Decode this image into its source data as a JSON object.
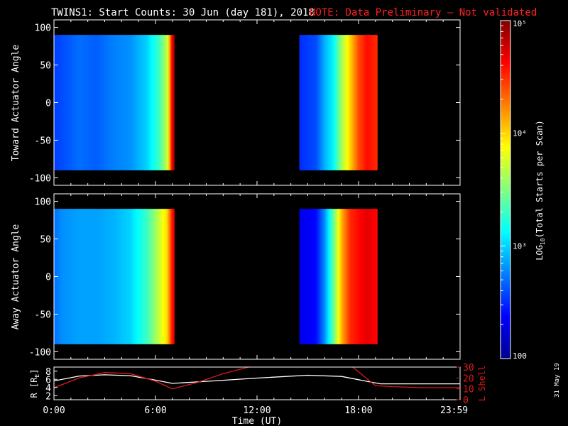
{
  "header": {
    "title": "TWINS1: Start Counts: 30 Jun (day 181), 2018",
    "note": "NOTE: Data Preliminary – Not validated"
  },
  "colors": {
    "background": "#000000",
    "foreground": "#ffffff",
    "note": "#ff2020",
    "lshell": "#dd1a1a",
    "radius": "#ffffff"
  },
  "chart_data": [
    {
      "type": "heatmap",
      "panel": "top",
      "ylabel": "Toward Actuator Angle",
      "ylim": [
        -110,
        110
      ],
      "yticks": [
        100,
        50,
        0,
        -50,
        -100
      ],
      "xlim": [
        0,
        24
      ],
      "angle_range": [
        -90,
        90
      ],
      "data_windows_hours": [
        [
          0,
          7.1
        ],
        [
          14.5,
          19.1
        ]
      ],
      "log10_counts_profile": {
        "t": [
          0,
          0.5,
          1.5,
          2.5,
          3.5,
          4.5,
          5.5,
          6.2,
          6.7,
          7.0,
          7.1,
          14.5,
          15.5,
          16.0,
          16.5,
          17.0,
          17.5,
          18.0,
          18.5,
          19.1
        ],
        "value": [
          2.55,
          2.6,
          2.7,
          2.65,
          2.75,
          2.8,
          3.0,
          3.3,
          3.7,
          4.7,
          4.9,
          2.5,
          2.6,
          2.9,
          3.1,
          3.6,
          4.0,
          4.4,
          4.6,
          4.5
        ]
      }
    },
    {
      "type": "heatmap",
      "panel": "middle",
      "ylabel": "Away Actuator Angle",
      "ylim": [
        -110,
        110
      ],
      "yticks": [
        100,
        50,
        0,
        -50,
        -100
      ],
      "xlim": [
        0,
        24
      ],
      "angle_range": [
        -90,
        90
      ],
      "data_windows_hours": [
        [
          0,
          7.1
        ],
        [
          14.5,
          19.1
        ]
      ],
      "log10_counts_profile": {
        "t": [
          0,
          0.5,
          1.5,
          2.5,
          3.5,
          4.5,
          5.5,
          6.2,
          6.7,
          7.0,
          7.1,
          14.5,
          15.5,
          16.0,
          16.5,
          17.0,
          17.5,
          18.0,
          18.5,
          19.1
        ],
        "value": [
          2.7,
          2.8,
          2.85,
          2.85,
          2.9,
          3.0,
          3.3,
          3.7,
          4.0,
          4.6,
          4.7,
          2.3,
          2.4,
          2.8,
          3.4,
          4.1,
          4.5,
          4.6,
          4.7,
          4.6
        ]
      }
    },
    {
      "type": "line",
      "panel": "bottom",
      "xlabel": "Time (UT)",
      "xticks": [
        "0:00",
        "6:00",
        "12:00",
        "18:00",
        "23:59"
      ],
      "xlim": [
        0,
        24
      ],
      "ylabel_left": "R [R_E]",
      "ylabel_left_sub": "E",
      "ylim_left": [
        1,
        9
      ],
      "yticks_left": [
        8,
        6,
        4,
        2
      ],
      "ylabel_right": "L Shell",
      "ylim_right": [
        0,
        30
      ],
      "yticks_right": [
        30,
        20,
        10,
        0
      ],
      "series": [
        {
          "axis": "left",
          "x": [
            0,
            1.5,
            3,
            4.5,
            6,
            7,
            9,
            12,
            15,
            17,
            18.5,
            19.3,
            21,
            24
          ],
          "y": [
            5.6,
            6.8,
            7.1,
            6.9,
            5.8,
            5.0,
            5.5,
            6.3,
            7.0,
            6.7,
            5.5,
            4.9,
            4.9,
            4.9
          ]
        },
        {
          "axis": "right",
          "x": [
            0,
            1.5,
            3,
            4.5,
            6,
            7,
            8.5,
            10,
            11.5,
            12.5,
            17.5,
            19,
            20,
            22,
            24
          ],
          "y": [
            11,
            20,
            25,
            24,
            17,
            10,
            16,
            24,
            30,
            32,
            32,
            13,
            12,
            11,
            11
          ]
        }
      ]
    }
  ],
  "colorbar": {
    "ylabel": "LOG10(Total Starts per Scan)",
    "label_prefix": "LOG",
    "label_sub": "10",
    "label_suffix": "(Total Starts per Scan)",
    "range_log10": [
      2,
      5
    ],
    "tick_labels": [
      "10⁵",
      "10⁴",
      "10³",
      "100"
    ]
  },
  "footer": {
    "date_stamp": "31 May 19"
  }
}
